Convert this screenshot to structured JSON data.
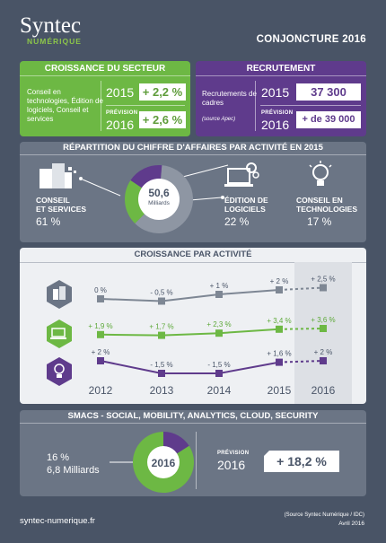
{
  "header": {
    "logo_main": "Syntec",
    "logo_sub": "NUMÉRIQUE",
    "title": "CONJONCTURE 2016"
  },
  "growth_sector": {
    "title": "CROISSANCE DU SECTEUR",
    "description": "Conseil en technologies, Édition de logiciels, Conseil et services",
    "year_actual": "2015",
    "value_actual": "+ 2,2 %",
    "forecast_label": "PRÉVISION",
    "year_forecast": "2016",
    "value_forecast": "+ 2,6 %"
  },
  "recruitment": {
    "title": "RECRUTEMENT",
    "description": "Recrutements de cadres",
    "source": "(source Apec)",
    "year_actual": "2015",
    "value_actual": "37 300",
    "forecast_label": "PRÉVISION",
    "year_forecast": "2016",
    "value_forecast": "+ de 39 000"
  },
  "revenue_split": {
    "title": "RÉPARTITION DU CHIFFRE D'AFFAIRES PAR ACTIVITÉ EN 2015",
    "center_value": "50,6",
    "center_unit": "Milliards",
    "labels": {
      "conseil_services": [
        "CONSEIL",
        "ET SERVICES"
      ],
      "edition": [
        "ÉDITION DE",
        "LOGICIELS"
      ],
      "conseil_tech": [
        "CONSEIL EN",
        "TECHNOLOGIES"
      ]
    },
    "percents": {
      "conseil_services": "61 %",
      "edition": "22 %",
      "conseil_tech": "17 %"
    }
  },
  "growth_activity": {
    "title": "CROISSANCE PAR ACTIVITÉ"
  },
  "smacs": {
    "title": "SMACS - SOCIAL, MOBILITY, ANALYTICS, CLOUD, SECURITY",
    "share": "16 %",
    "amount": "6,8 Milliards",
    "center_year": "2016",
    "forecast_label": "PRÉVISION",
    "year": "2016",
    "value": "+ 18,2 %"
  },
  "footer": {
    "website": "syntec-numerique.fr",
    "source": "(Source Syntec Numérique / IDC)",
    "date": "Avril 2016"
  },
  "colors": {
    "background": "#495466",
    "green": "#6db844",
    "purple": "#5f3b8c",
    "grey": "#7e8794"
  },
  "chart_data": [
    {
      "type": "pie",
      "title": "RÉPARTITION DU CHIFFRE D'AFFAIRES PAR ACTIVITÉ EN 2015",
      "slices": [
        {
          "name": "CONSEIL ET SERVICES",
          "value": 61,
          "color": "#8e96a3"
        },
        {
          "name": "ÉDITION DE LOGICIELS",
          "value": 22,
          "color": "#6db844"
        },
        {
          "name": "CONSEIL EN TECHNOLOGIES",
          "value": 17,
          "color": "#5f3b8c"
        }
      ]
    },
    {
      "type": "line",
      "title": "CROISSANCE PAR ACTIVITÉ",
      "x": [
        "2012",
        "2013",
        "2014",
        "2015",
        "2016"
      ],
      "forecast_index": 4,
      "series": [
        {
          "icon": "office-icon",
          "color": "#7e8794",
          "values": [
            0,
            -0.5,
            1,
            2,
            2.5
          ],
          "labels": [
            "0 %",
            "- 0,5 %",
            "+ 1 %",
            "+ 2 %",
            "+ 2,5 %"
          ]
        },
        {
          "icon": "software-icon",
          "color": "#6db844",
          "values": [
            1.9,
            1.7,
            2.3,
            3.4,
            3.6
          ],
          "labels": [
            "+ 1,9 %",
            "+ 1,7 %",
            "+ 2,3 %",
            "+ 3,4 %",
            "+ 3,6 %"
          ]
        },
        {
          "icon": "lightbulb-icon",
          "color": "#5f3b8c",
          "values": [
            2,
            -1.5,
            -1.5,
            1.6,
            2
          ],
          "labels": [
            "+ 2 %",
            "- 1,5 %",
            "- 1,5 %",
            "+ 1,6 %",
            "+ 2 %"
          ]
        }
      ]
    },
    {
      "type": "pie",
      "title": "SMACS - SOCIAL, MOBILITY, ANALYTICS, CLOUD, SECURITY",
      "slices": [
        {
          "name": "SMACS",
          "value": 16,
          "color": "#5f3b8c"
        },
        {
          "name": "",
          "value": 84,
          "color": "#6db844"
        }
      ]
    }
  ]
}
